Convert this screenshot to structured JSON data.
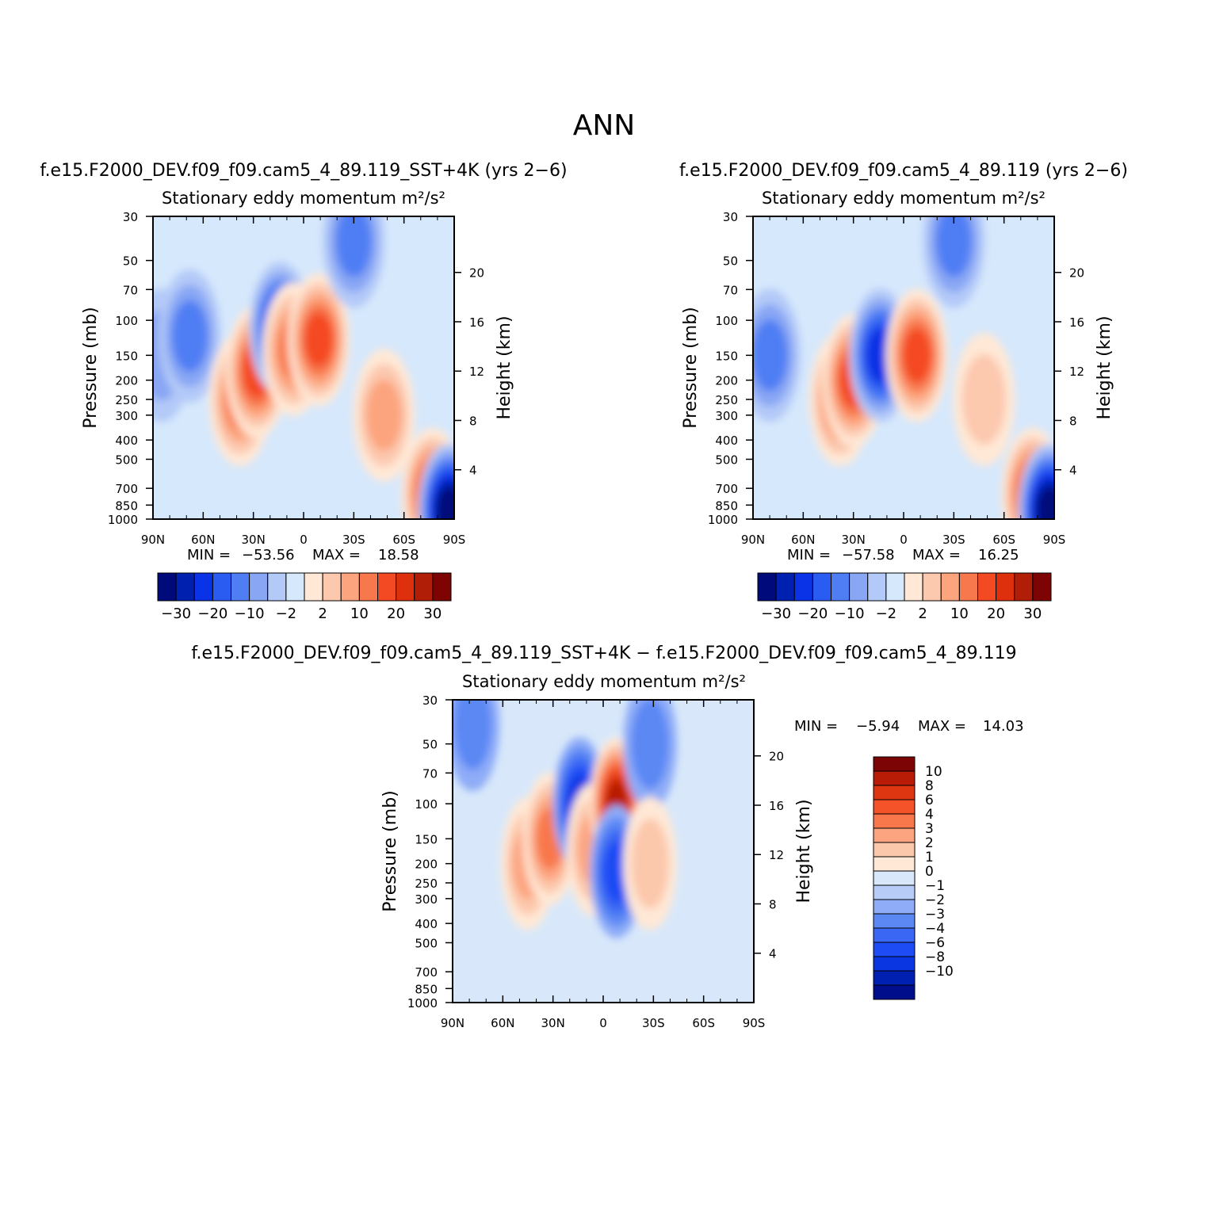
{
  "figure": {
    "title": "ANN"
  },
  "colors": {
    "abs_levels": [
      "#000a7a",
      "#0020b0",
      "#0a32e6",
      "#2b5cf2",
      "#4f7ef4",
      "#88a6f4",
      "#b3c9f8",
      "#d6e8fc",
      "#ffe8d6",
      "#fcc8ae",
      "#fca47e",
      "#f8784e",
      "#f44a24",
      "#de300c",
      "#b01e08",
      "#7e0404"
    ],
    "diff_levels": [
      "#000e8c",
      "#0020b2",
      "#0a36e2",
      "#1e4cf4",
      "#3a68f4",
      "#5c88f4",
      "#8eacf8",
      "#b8ccf8",
      "#d8e8fa",
      "#ffe8d6",
      "#fcc8ac",
      "#fca480",
      "#f8784c",
      "#f45228",
      "#de3610",
      "#b81c06",
      "#7c0404"
    ]
  },
  "chart_data": [
    {
      "type": "heatmap",
      "title": "f.e15.F2000_DEV.f09_f09.cam5_4_89.119_SST+4K (yrs 2−6)",
      "subtitle_prefix": "Stationary eddy momentum",
      "units": "m²/s²",
      "ylabel": "Pressure (mb)",
      "y2label": "Height (km)",
      "x_ticks": [
        "90N",
        "60N",
        "30N",
        "0",
        "30S",
        "60S",
        "90S"
      ],
      "y_ticks": [
        "30",
        "50",
        "70",
        "100",
        "150",
        "200",
        "250",
        "300",
        "400",
        "500",
        "700",
        "850",
        "1000"
      ],
      "y2_ticks": [
        "20",
        "16",
        "12",
        "8",
        "4"
      ],
      "xlim": [
        90,
        -90
      ],
      "ylim": [
        1000,
        30
      ],
      "min_label": "MIN =",
      "min_value": "−53.56",
      "max_label": "MAX =",
      "max_value": "18.58",
      "colorbar_labels": [
        "−30",
        "−20",
        "−10",
        "−2",
        "2",
        "10",
        "20",
        "30"
      ],
      "features": [
        {
          "lat": 85,
          "p": 150,
          "value": -2
        },
        {
          "lat": 68,
          "p": 120,
          "value": -5
        },
        {
          "lat": 38,
          "p": 250,
          "value": 8
        },
        {
          "lat": 28,
          "p": 180,
          "value": 12
        },
        {
          "lat": 14,
          "p": 110,
          "value": -10
        },
        {
          "lat": 6,
          "p": 140,
          "value": 6
        },
        {
          "lat": -9,
          "p": 125,
          "value": 18
        },
        {
          "lat": -30,
          "p": 40,
          "value": -4
        },
        {
          "lat": -48,
          "p": 300,
          "value": 4
        },
        {
          "lat": -77,
          "p": 750,
          "value": 12
        },
        {
          "lat": -87,
          "p": 900,
          "value": -53.56
        }
      ]
    },
    {
      "type": "heatmap",
      "title": "f.e15.F2000_DEV.f09_f09.cam5_4_89.119 (yrs 2−6)",
      "subtitle_prefix": "Stationary eddy momentum",
      "units": "m²/s²",
      "ylabel": "Pressure (mb)",
      "y2label": "Height (km)",
      "x_ticks": [
        "90N",
        "60N",
        "30N",
        "0",
        "30S",
        "60S",
        "90S"
      ],
      "y_ticks": [
        "30",
        "50",
        "70",
        "100",
        "150",
        "200",
        "250",
        "300",
        "400",
        "500",
        "700",
        "850",
        "1000"
      ],
      "y2_ticks": [
        "20",
        "16",
        "12",
        "8",
        "4"
      ],
      "xlim": [
        90,
        -90
      ],
      "ylim": [
        1000,
        30
      ],
      "min_label": "MIN =",
      "min_value": "−57.58",
      "max_label": "MAX =",
      "max_value": "16.25",
      "colorbar_labels": [
        "−30",
        "−20",
        "−10",
        "−2",
        "2",
        "10",
        "20",
        "30"
      ],
      "features": [
        {
          "lat": 80,
          "p": 150,
          "value": -4
        },
        {
          "lat": 38,
          "p": 250,
          "value": 7
        },
        {
          "lat": 30,
          "p": 200,
          "value": 10
        },
        {
          "lat": 14,
          "p": 150,
          "value": -12
        },
        {
          "lat": -8,
          "p": 150,
          "value": 16
        },
        {
          "lat": -30,
          "p": 40,
          "value": -4
        },
        {
          "lat": -48,
          "p": 250,
          "value": 3
        },
        {
          "lat": -77,
          "p": 750,
          "value": 10
        },
        {
          "lat": -87,
          "p": 900,
          "value": -57.58
        }
      ]
    },
    {
      "type": "heatmap",
      "title": "f.e15.F2000_DEV.f09_f09.cam5_4_89.119_SST+4K − f.e15.F2000_DEV.f09_f09.cam5_4_89.119",
      "subtitle_prefix": "Stationary eddy momentum",
      "units": "m²/s²",
      "ylabel": "Pressure (mb)",
      "y2label": "Height (km)",
      "x_ticks": [
        "90N",
        "60N",
        "30N",
        "0",
        "30S",
        "60S",
        "90S"
      ],
      "y_ticks": [
        "30",
        "50",
        "70",
        "100",
        "150",
        "200",
        "250",
        "300",
        "400",
        "500",
        "700",
        "850",
        "1000"
      ],
      "y2_ticks": [
        "20",
        "16",
        "12",
        "8",
        "4"
      ],
      "xlim": [
        90,
        -90
      ],
      "ylim": [
        1000,
        30
      ],
      "min_label": "MIN =",
      "min_value": "−5.94",
      "max_label": "MAX =",
      "max_value": "14.03",
      "colorbar_labels": [
        "10",
        "8",
        "6",
        "4",
        "3",
        "2",
        "1",
        "0",
        "−1",
        "−2",
        "−3",
        "−4",
        "−6",
        "−8",
        "−10"
      ],
      "features": [
        {
          "lat": 78,
          "p": 40,
          "value": -2
        },
        {
          "lat": 45,
          "p": 200,
          "value": 3
        },
        {
          "lat": 32,
          "p": 150,
          "value": 4
        },
        {
          "lat": 14,
          "p": 100,
          "value": -6
        },
        {
          "lat": 6,
          "p": 170,
          "value": 3
        },
        {
          "lat": -8,
          "p": 100,
          "value": 14
        },
        {
          "lat": -8,
          "p": 220,
          "value": -5
        },
        {
          "lat": -28,
          "p": 50,
          "value": -2
        },
        {
          "lat": -28,
          "p": 200,
          "value": 2
        }
      ]
    }
  ]
}
